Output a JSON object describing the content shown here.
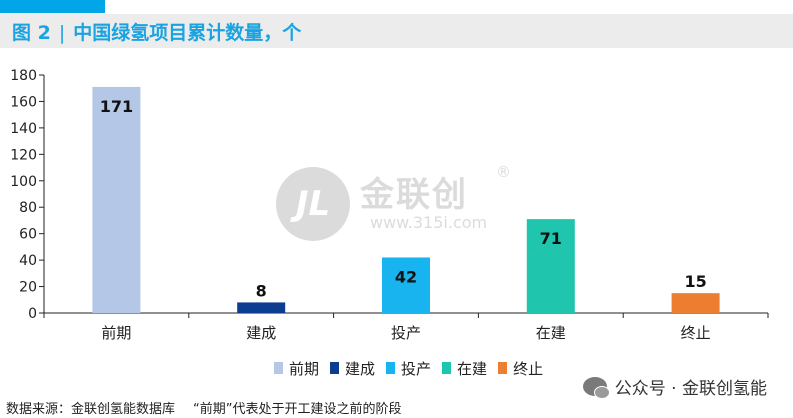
{
  "header": {
    "figure_label": "图 2",
    "separator": "|",
    "title": "中国绿氢项目累计数量，个"
  },
  "colors": {
    "accent": "#00a6e8",
    "title": "#1aa3e0",
    "series": [
      "#b4c7e7",
      "#0d3d91",
      "#17b4f0",
      "#1fc5ad",
      "#ed7d31"
    ]
  },
  "chart_data": {
    "type": "bar",
    "categories": [
      "前期",
      "建成",
      "投产",
      "在建",
      "终止"
    ],
    "values": [
      171,
      8,
      42,
      71,
      15
    ],
    "ylim": [
      0,
      180
    ],
    "yticks": [
      0,
      20,
      40,
      60,
      80,
      100,
      120,
      140,
      160,
      180
    ],
    "data_labels": true,
    "grid": false,
    "legend": {
      "position": "bottom",
      "entries": [
        "前期",
        "建成",
        "投产",
        "在建",
        "终止"
      ]
    }
  },
  "watermark": {
    "logo_text": "JL",
    "name": "金联创",
    "registered": "®",
    "url": "www.315i.com"
  },
  "footer": {
    "brand": "公众号 · 金联创氢能",
    "source": "数据来源：金联创氢能数据库",
    "note": "“前期”代表处于开工建设之前的阶段"
  }
}
